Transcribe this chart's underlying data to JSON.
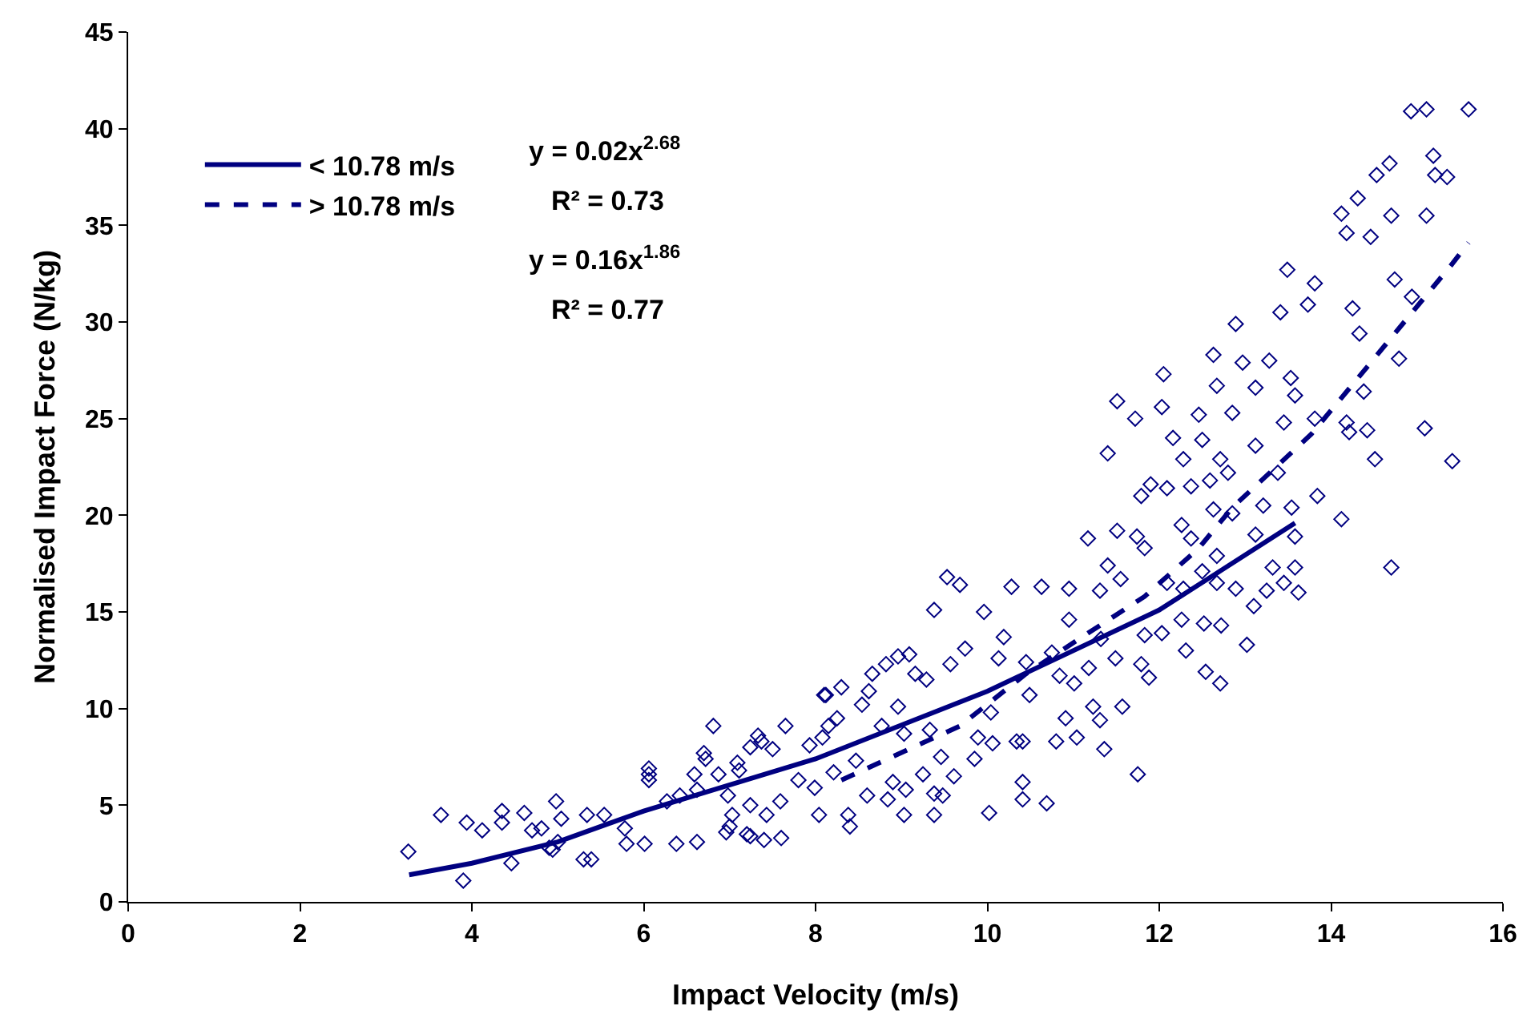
{
  "chart_data": {
    "type": "scatter",
    "xlabel": "Impact Velocity (m/s)",
    "ylabel": "Normalised Impact Force (N/kg)",
    "xlim": [
      0,
      16
    ],
    "xticks": [
      0,
      2,
      4,
      6,
      8,
      10,
      12,
      14,
      16
    ],
    "ylim": [
      0,
      45
    ],
    "yticks": [
      0,
      5,
      10,
      15,
      20,
      25,
      30,
      35,
      40,
      45
    ],
    "grid": false,
    "legend": "top left",
    "annotations": [
      "y = 0.02x$^{2.68}$",
      "R² = 0.73",
      "y = 0.16x$^{1.86}$",
      "R² = 0.77"
    ],
    "series": [
      {
        "marker": "diamond",
        "color": "#000080",
        "x": [
          3.26,
          3.64,
          3.9,
          3.94,
          4.12,
          4.35,
          4.35,
          4.46,
          4.61,
          4.7,
          4.81,
          4.98,
          5.04,
          4.94,
          5.34,
          5.39,
          5.54,
          5.78,
          6.01,
          6.06,
          6.06,
          6.38,
          6.59,
          6.62,
          6.7,
          6.81,
          6.87,
          7.09,
          6.96,
          7.24,
          7.33,
          7.24,
          7.65,
          8.1,
          8.66,
          8.96,
          9.09,
          9.38,
          9.53,
          9.68,
          9.96,
          10.28,
          10.63,
          10.95,
          11.51,
          11.4,
          11.72,
          12.05,
          12.03,
          12.63,
          12.89,
          13.49,
          13.81,
          13.73,
          13.41,
          14.12,
          14.31,
          14.18,
          14.46,
          14.53,
          14.68,
          14.7,
          14.93,
          15.11,
          15.6,
          15.19,
          15.21,
          15.35,
          15.11,
          14.25,
          14.33,
          14.74,
          14.79,
          14.94,
          14.38,
          14.18,
          14.21,
          14.42,
          14.51,
          15.09,
          15.41,
          14.12,
          14.7,
          13.81,
          13.84,
          13.58,
          13.62,
          13.58,
          13.45,
          13.28,
          13.53,
          13.58,
          13.45,
          12.97,
          12.85,
          13.12,
          13.12,
          13.38,
          13.54,
          13.21,
          13.12,
          13.32,
          13.25,
          13.1,
          13.02,
          12.89,
          12.67,
          12.46,
          12.5,
          12.16,
          12.28,
          11.79,
          11.9,
          12.09,
          12.37,
          12.26,
          12.37,
          12.59,
          12.71,
          12.8,
          12.63,
          12.85,
          12.67,
          12.5,
          12.67,
          12.28,
          12.09,
          12.26,
          12.52,
          12.72,
          12.31,
          12.54,
          12.71,
          12.03,
          11.83,
          11.74,
          11.83,
          11.51,
          11.17,
          11.4,
          11.55,
          11.31,
          11.49,
          11.79,
          11.88,
          11.57,
          11.75,
          11.31,
          11.36,
          11.23,
          11.04,
          10.91,
          10.8,
          10.69,
          11.01,
          11.18,
          10.84,
          10.75,
          10.95,
          11.32,
          10.45,
          10.49,
          10.41,
          10.41,
          10.41,
          10.34,
          10.02,
          10.13,
          10.19,
          9.85,
          9.89,
          10.06,
          10.04,
          9.74,
          9.57,
          9.61,
          9.48,
          9.38,
          9.46,
          9.25,
          9.38,
          9.03,
          8.9,
          8.84,
          9.05,
          9.03,
          9.29,
          9.33,
          9.16,
          8.82,
          8.77,
          8.96,
          8.62,
          8.54,
          8.3,
          8.12,
          8.15,
          8.08,
          7.93,
          8.25,
          8.47,
          8.21,
          7.99,
          7.8,
          7.59,
          7.5,
          7.37,
          7.24,
          7.11,
          6.98,
          6.72,
          6.62,
          6.42,
          6.27,
          6.06,
          8.38,
          8.6,
          8.04,
          7.43,
          7.03,
          7.4,
          7.6,
          8.4,
          7.0,
          7.2,
          4.9,
          5.0,
          5.3,
          5.8
        ],
        "values": [
          2.6,
          4.5,
          1.1,
          4.1,
          3.7,
          4.7,
          4.1,
          2.0,
          4.6,
          3.7,
          3.8,
          5.2,
          4.3,
          2.7,
          4.5,
          2.2,
          4.5,
          3.8,
          3.0,
          6.9,
          6.3,
          3.0,
          6.6,
          3.1,
          7.7,
          9.1,
          6.6,
          7.2,
          3.6,
          8.0,
          8.6,
          3.4,
          9.1,
          10.7,
          11.8,
          12.7,
          12.8,
          15.1,
          16.8,
          16.4,
          15.0,
          16.3,
          16.3,
          16.2,
          25.9,
          23.2,
          25.0,
          27.3,
          25.6,
          28.3,
          29.9,
          32.7,
          32.0,
          30.9,
          30.5,
          35.6,
          36.4,
          34.6,
          34.4,
          37.6,
          38.2,
          35.5,
          40.9,
          41.0,
          41.0,
          38.6,
          37.6,
          37.5,
          35.5,
          30.7,
          29.4,
          32.2,
          28.1,
          31.3,
          26.4,
          24.8,
          24.3,
          24.4,
          22.9,
          24.5,
          22.8,
          19.8,
          17.3,
          25.0,
          21.0,
          18.9,
          16.0,
          17.3,
          16.5,
          28.0,
          27.1,
          26.2,
          24.8,
          27.9,
          25.3,
          26.6,
          23.6,
          22.2,
          20.4,
          20.5,
          19.0,
          17.3,
          16.1,
          15.3,
          13.3,
          16.2,
          26.7,
          25.2,
          23.9,
          24.0,
          22.9,
          21.0,
          21.6,
          21.4,
          21.5,
          19.5,
          18.8,
          21.8,
          22.9,
          22.2,
          20.3,
          20.1,
          17.9,
          17.1,
          16.5,
          16.2,
          16.5,
          14.6,
          14.4,
          14.3,
          13.0,
          11.9,
          11.3,
          13.9,
          13.8,
          18.9,
          18.3,
          19.2,
          18.8,
          17.4,
          16.7,
          16.1,
          12.6,
          12.3,
          11.6,
          10.1,
          6.6,
          9.4,
          7.9,
          10.1,
          8.5,
          9.5,
          8.3,
          5.1,
          11.3,
          12.1,
          11.7,
          12.9,
          14.6,
          13.6,
          12.4,
          10.7,
          8.3,
          6.2,
          5.3,
          8.3,
          4.6,
          12.6,
          13.7,
          7.4,
          8.5,
          8.2,
          9.8,
          13.1,
          12.3,
          6.5,
          5.5,
          5.6,
          7.5,
          6.6,
          4.5,
          4.5,
          6.2,
          5.3,
          5.8,
          8.7,
          11.5,
          8.9,
          11.8,
          12.3,
          9.1,
          10.1,
          10.9,
          10.2,
          11.1,
          10.7,
          9.1,
          8.5,
          8.1,
          9.5,
          7.3,
          6.7,
          5.9,
          6.3,
          5.2,
          7.9,
          8.3,
          5.0,
          6.8,
          5.5,
          7.4,
          5.8,
          5.5,
          5.2,
          6.6,
          4.5,
          5.5,
          4.5,
          4.5,
          4.5,
          3.2,
          3.3,
          3.9,
          3.9,
          3.5,
          2.8,
          3.1,
          2.2,
          3.0
        ]
      },
      {
        "type": "line",
        "name": "< 10.78 m/s",
        "marker": "none",
        "line_style": "solid",
        "color": "#000080",
        "x": [
          3.27,
          4.0,
          5.0,
          6.0,
          8.0,
          10.0,
          12.0,
          13.58
        ],
        "values": [
          1.4,
          2.0,
          3.1,
          4.7,
          7.4,
          10.9,
          15.1,
          19.6
        ]
      },
      {
        "type": "line",
        "name": "> 10.78 m/s",
        "marker": "none",
        "line_style": "dashed",
        "color": "#000080",
        "x": [
          8.3,
          9.68,
          10.45,
          11.17,
          11.83,
          12.46,
          12.85,
          13.77,
          14.35,
          14.87,
          15.39,
          15.6
        ],
        "values": [
          6.3,
          9.1,
          11.8,
          13.9,
          15.8,
          18.3,
          20.4,
          24.2,
          27.3,
          30.1,
          32.9,
          34.1
        ]
      }
    ]
  }
}
